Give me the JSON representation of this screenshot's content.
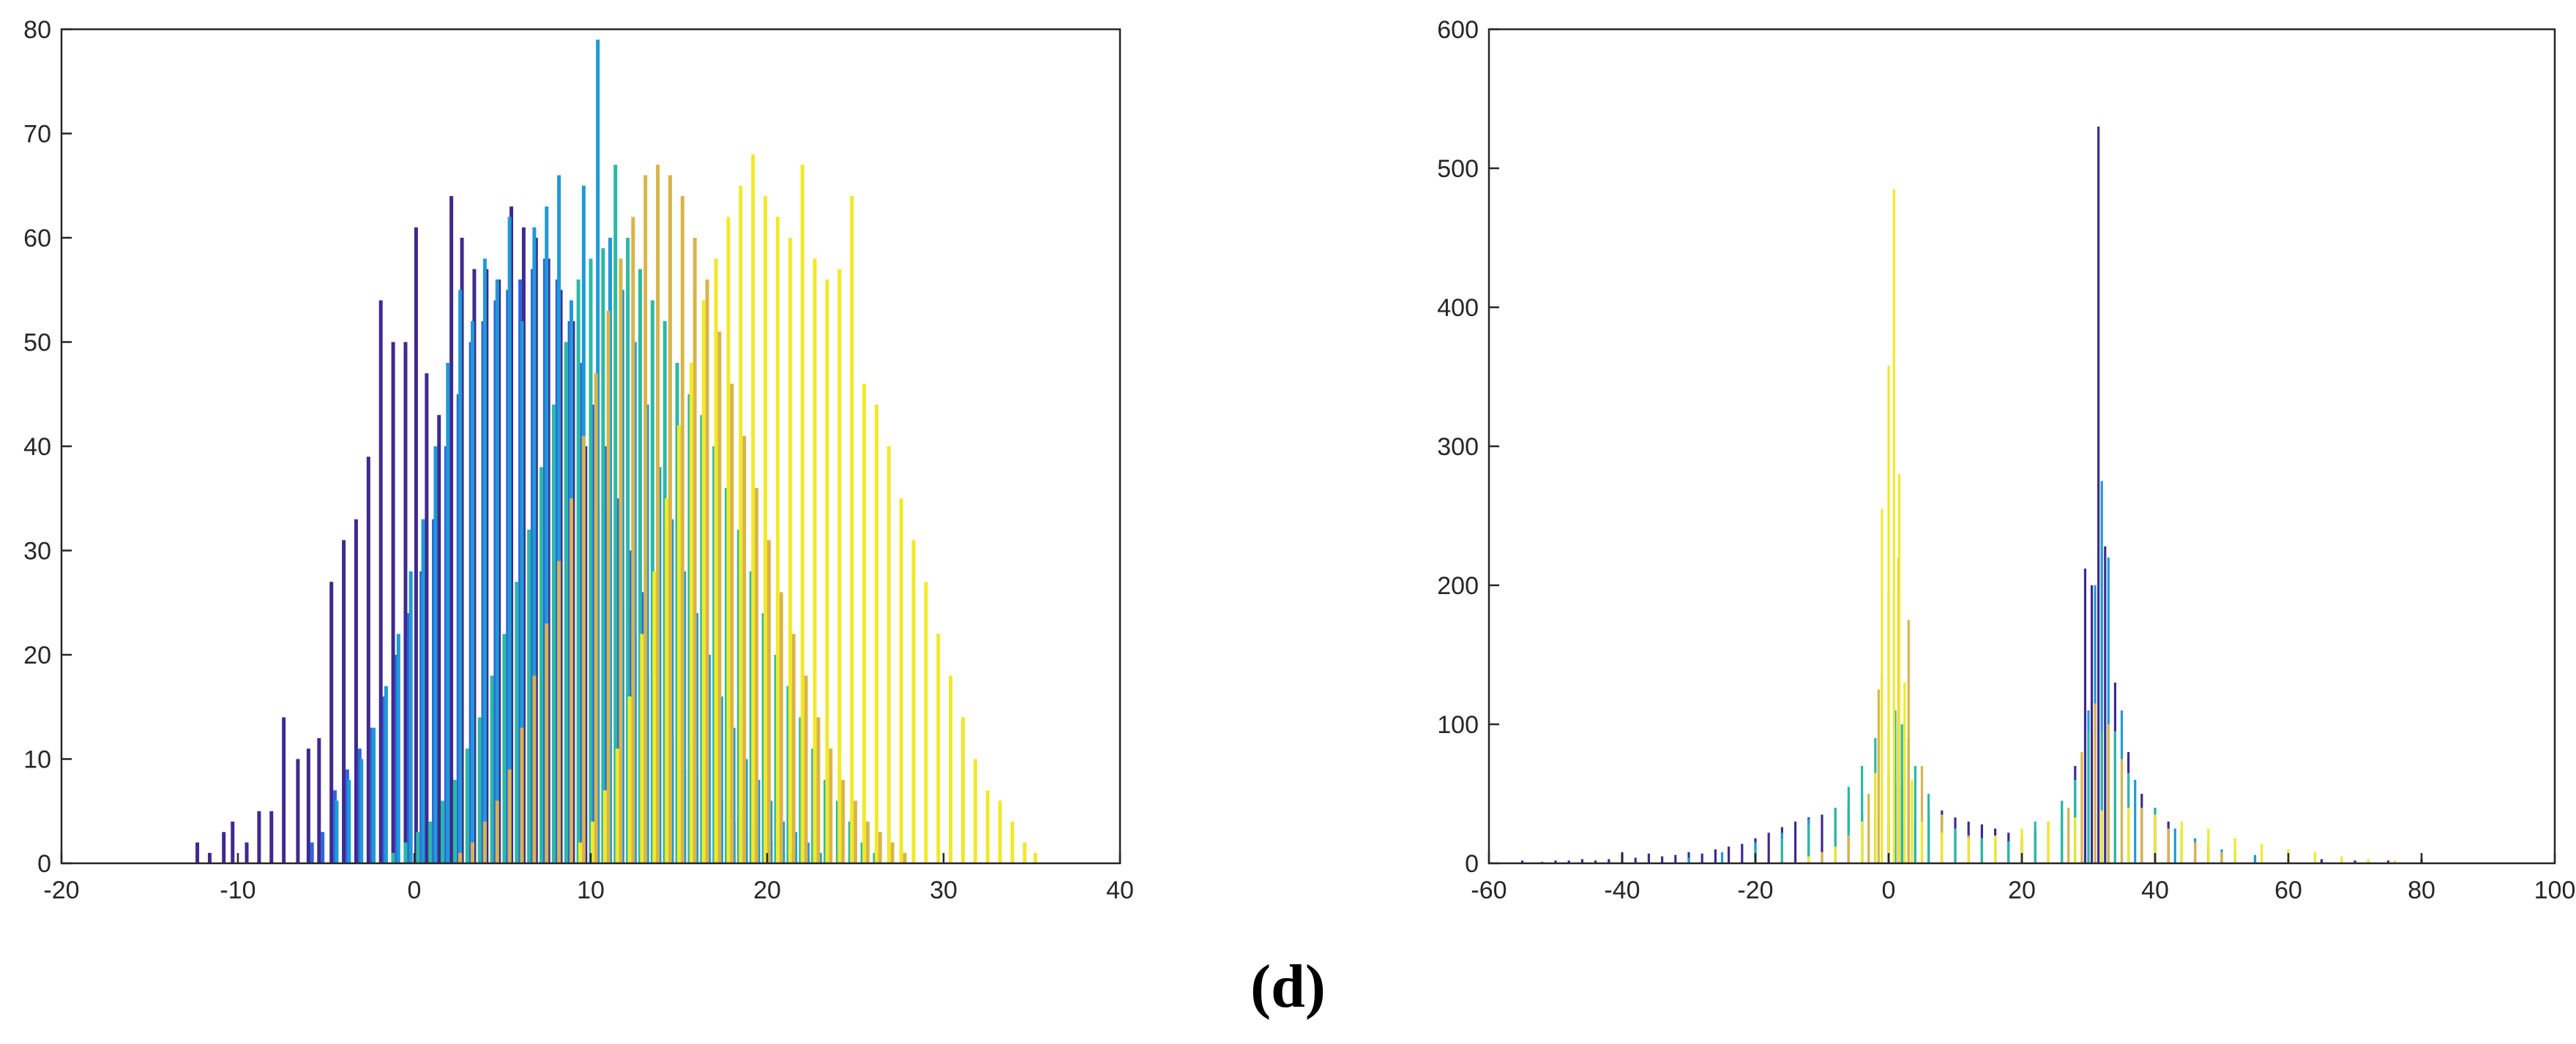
{
  "caption": "(d)",
  "palette": [
    "#3e2a8f",
    "#2f64e0",
    "#1f9ad6",
    "#2bb9a5",
    "#8ecb5e",
    "#d9b44a",
    "#f1e92a",
    "#ffff33"
  ],
  "chart_data": [
    {
      "type": "bar",
      "xlim": [
        -20,
        40
      ],
      "ylim": [
        0,
        80
      ],
      "xticks": [
        -20,
        -10,
        0,
        10,
        20,
        30,
        40
      ],
      "yticks": [
        0,
        10,
        20,
        30,
        40,
        50,
        60,
        70,
        80
      ],
      "grid": false,
      "xtick_labels": [
        "-20",
        "-10",
        "0",
        "10",
        "20",
        "30",
        "40"
      ],
      "ytick_labels": [
        "0",
        "10",
        "20",
        "30",
        "40",
        "50",
        "60",
        "70",
        "80"
      ],
      "series": [
        {
          "color": "#3e2a8f",
          "x": [
            -12.3,
            -11.6,
            -10.8,
            -10.3,
            -9.5,
            -8.8,
            -8.1,
            -7.4,
            -6.6,
            -6.0,
            -5.4,
            -4.7,
            -4.0,
            -3.3,
            -2.6,
            -1.9,
            -1.2,
            -0.5,
            0.1,
            0.7,
            1.4,
            2.1,
            2.7,
            3.4,
            4.1,
            4.8,
            5.5,
            6.2,
            6.9,
            7.6,
            8.3,
            9.0,
            9.7,
            10.4,
            11.1,
            11.8,
            12.5,
            13.2,
            13.9,
            14.6,
            15.3,
            16.0,
            16.7,
            17.4,
            18.1,
            18.8,
            19.5,
            20.2,
            20.9,
            21.6,
            22.3
          ],
          "values": [
            2,
            1,
            3,
            4,
            2,
            5,
            5,
            14,
            10,
            11,
            12,
            27,
            31,
            33,
            39,
            54,
            50,
            50,
            61,
            47,
            43,
            64,
            60,
            57,
            57,
            56,
            63,
            61,
            60,
            58,
            55,
            52,
            40,
            34,
            30,
            25,
            22,
            18,
            14,
            12,
            9,
            9,
            7,
            6,
            4,
            3,
            2,
            2,
            1,
            1,
            1
          ]
        },
        {
          "color": "#2f64e0",
          "x": [
            -5.8,
            -5.2,
            -4.5,
            -3.8,
            -3.1,
            -2.4,
            -1.7,
            -1.0,
            -0.3,
            0.4,
            1.1,
            1.8,
            2.5,
            3.2,
            3.9,
            4.6,
            5.3,
            6.0,
            6.7,
            7.4,
            8.1,
            8.8,
            9.5,
            10.2,
            10.9,
            11.6,
            12.3,
            13.0,
            13.7,
            14.4,
            15.1,
            15.8,
            16.5,
            17.2,
            17.9,
            18.6,
            19.3,
            20.0,
            20.7,
            21.4,
            22.1
          ],
          "values": [
            2,
            3,
            7,
            9,
            11,
            13,
            16,
            20,
            24,
            28,
            33,
            40,
            45,
            50,
            52,
            54,
            55,
            56,
            57,
            58,
            56,
            52,
            48,
            44,
            40,
            35,
            30,
            26,
            22,
            18,
            15,
            12,
            10,
            8,
            6,
            5,
            4,
            3,
            2,
            1,
            1
          ]
        },
        {
          "color": "#1f9ad6",
          "x": [
            -4.4,
            -3.7,
            -3.0,
            -2.3,
            -1.6,
            -0.9,
            -0.2,
            0.5,
            1.2,
            1.9,
            2.6,
            3.3,
            4.0,
            4.7,
            5.4,
            6.1,
            6.8,
            7.5,
            8.2,
            8.9,
            9.6,
            10.4,
            11.1,
            11.8,
            12.5,
            13.2,
            13.9,
            14.6,
            15.3,
            16.0,
            16.7,
            17.4,
            18.1,
            18.8,
            19.5,
            20.2,
            20.9,
            21.6,
            22.3,
            23.0
          ],
          "values": [
            6,
            8,
            10,
            13,
            17,
            22,
            28,
            33,
            40,
            48,
            55,
            52,
            58,
            56,
            62,
            52,
            61,
            63,
            66,
            54,
            65,
            79,
            60,
            55,
            50,
            44,
            38,
            33,
            28,
            24,
            20,
            16,
            13,
            10,
            8,
            6,
            4,
            3,
            2,
            1
          ]
        },
        {
          "color": "#2bb9a5",
          "x": [
            -1.2,
            -0.5,
            0.2,
            0.9,
            1.6,
            2.3,
            3.0,
            3.7,
            4.4,
            5.1,
            5.8,
            6.5,
            7.2,
            7.9,
            8.6,
            9.3,
            10.0,
            10.7,
            11.4,
            12.1,
            12.8,
            13.5,
            14.2,
            14.9,
            15.6,
            16.3,
            17.0,
            17.7,
            18.4,
            19.1,
            19.8,
            20.5,
            21.2,
            21.9,
            22.6,
            23.3,
            24.0,
            24.7,
            25.4,
            26.1
          ],
          "values": [
            1,
            2,
            3,
            4,
            6,
            8,
            11,
            14,
            18,
            22,
            27,
            32,
            38,
            44,
            50,
            56,
            58,
            59,
            67,
            60,
            57,
            54,
            52,
            48,
            45,
            43,
            40,
            36,
            32,
            28,
            24,
            20,
            17,
            14,
            11,
            8,
            6,
            4,
            2,
            1
          ]
        },
        {
          "color": "#d9b44a",
          "x": [
            2.6,
            3.3,
            4.0,
            4.7,
            5.4,
            6.1,
            6.8,
            7.5,
            8.2,
            8.9,
            9.6,
            10.3,
            11.0,
            11.7,
            12.4,
            13.1,
            13.8,
            14.5,
            15.2,
            15.9,
            16.6,
            17.3,
            18.0,
            18.7,
            19.4,
            20.1,
            20.8,
            21.5,
            22.2,
            22.9,
            23.6,
            24.3,
            25.0,
            25.7,
            26.4,
            27.1,
            27.8
          ],
          "values": [
            1,
            2,
            4,
            6,
            9,
            13,
            18,
            23,
            29,
            35,
            41,
            47,
            53,
            58,
            62,
            66,
            67,
            66,
            64,
            60,
            56,
            51,
            46,
            41,
            36,
            31,
            26,
            22,
            18,
            14,
            11,
            8,
            6,
            4,
            3,
            2,
            1
          ]
        },
        {
          "color": "#f1e92a",
          "x": [
            9.4,
            10.1,
            10.8,
            11.5,
            12.2,
            12.9,
            13.6,
            14.3,
            15.0,
            15.7,
            16.4,
            17.1,
            17.8,
            18.5,
            19.2,
            19.9,
            20.6,
            21.3,
            22.0,
            22.7,
            23.4,
            24.1,
            24.8,
            25.5,
            26.2,
            26.9,
            27.6,
            28.3,
            29.0,
            29.7,
            30.4,
            31.1,
            31.8,
            32.5,
            33.2,
            33.9,
            34.6,
            35.2
          ],
          "values": [
            2,
            4,
            7,
            11,
            16,
            22,
            28,
            35,
            42,
            48,
            54,
            58,
            62,
            65,
            68,
            64,
            62,
            60,
            67,
            58,
            56,
            57,
            64,
            46,
            44,
            40,
            35,
            31,
            27,
            22,
            18,
            14,
            10,
            7,
            6,
            4,
            2,
            1
          ]
        }
      ]
    },
    {
      "type": "bar",
      "xlim": [
        -60,
        100
      ],
      "ylim": [
        0,
        600
      ],
      "xticks": [
        -60,
        -40,
        -20,
        0,
        20,
        40,
        60,
        80,
        100
      ],
      "yticks": [
        0,
        100,
        200,
        300,
        400,
        500,
        600
      ],
      "grid": false,
      "xtick_labels": [
        "-60",
        "-40",
        "-20",
        "0",
        "20",
        "40",
        "60",
        "80",
        "100"
      ],
      "ytick_labels": [
        "0",
        "100",
        "200",
        "300",
        "400",
        "500",
        "600"
      ],
      "series": [
        {
          "color": "#3e2a8f",
          "x": [
            -55,
            -52,
            -50,
            -48,
            -46,
            -44,
            -42,
            -40,
            -38,
            -36,
            -34,
            -32,
            -30,
            -28,
            -26,
            -24,
            -22,
            -20,
            -18,
            -16,
            -14,
            -12,
            -10,
            -8,
            -6,
            -4,
            -2,
            0,
            2,
            4,
            6,
            8,
            10,
            12,
            14,
            16,
            18,
            20,
            22,
            24,
            26,
            28,
            29.5,
            30.5,
            31.5,
            32.5,
            34,
            36,
            38,
            40,
            42,
            44,
            46,
            48,
            50,
            55,
            60,
            65,
            70,
            75,
            80
          ],
          "values": [
            2,
            1,
            2,
            2,
            3,
            2,
            3,
            8,
            4,
            7,
            5,
            6,
            8,
            7,
            10,
            12,
            14,
            18,
            22,
            26,
            30,
            33,
            35,
            38,
            40,
            36,
            33,
            30,
            28,
            30,
            35,
            38,
            33,
            30,
            28,
            25,
            22,
            20,
            24,
            30,
            45,
            70,
            212,
            200,
            530,
            228,
            130,
            80,
            50,
            40,
            30,
            22,
            15,
            10,
            7,
            5,
            3,
            3,
            2,
            2,
            3
          ]
        },
        {
          "color": "#1f9ad6",
          "x": [
            -30,
            -25,
            -20,
            -16,
            -12,
            -8,
            -6,
            -4,
            -2,
            0,
            1,
            2,
            4,
            6,
            8,
            10,
            12,
            14,
            16,
            18,
            20,
            22,
            24,
            26,
            28,
            30,
            31,
            32,
            33,
            35,
            37,
            40,
            43,
            46,
            50,
            55,
            60
          ],
          "values": [
            4,
            8,
            15,
            22,
            32,
            40,
            45,
            50,
            60,
            65,
            60,
            55,
            45,
            38,
            30,
            25,
            20,
            18,
            16,
            16,
            18,
            20,
            25,
            35,
            60,
            110,
            200,
            275,
            220,
            110,
            60,
            35,
            25,
            18,
            10,
            6,
            3
          ]
        },
        {
          "color": "#2bb9a5",
          "x": [
            -20,
            -16,
            -12,
            -8,
            -6,
            -4,
            -2,
            -1,
            0,
            1,
            2,
            3,
            4,
            6,
            8,
            10,
            14,
            18,
            22,
            26,
            28,
            30,
            32,
            34,
            36,
            40,
            44,
            48,
            52
          ],
          "values": [
            10,
            18,
            28,
            40,
            55,
            70,
            90,
            135,
            95,
            110,
            100,
            90,
            70,
            50,
            35,
            25,
            18,
            15,
            30,
            45,
            60,
            95,
            95,
            95,
            65,
            40,
            25,
            15,
            8
          ]
        },
        {
          "color": "#d9b44a",
          "x": [
            -10,
            -6,
            -3,
            -1.5,
            0,
            1.5,
            3,
            5,
            8,
            12,
            16,
            20,
            24,
            27,
            29,
            31,
            33,
            35,
            38,
            42,
            46,
            50
          ],
          "values": [
            8,
            20,
            50,
            125,
            195,
            220,
            175,
            70,
            35,
            20,
            15,
            18,
            25,
            40,
            80,
            115,
            100,
            75,
            40,
            25,
            15,
            8
          ]
        },
        {
          "color": "#f1e92a",
          "x": [
            -12,
            -8,
            -4,
            -2,
            -1,
            0,
            0.8,
            1.6,
            2.4,
            3.5,
            5,
            8,
            12,
            16,
            20,
            24,
            28,
            32,
            36,
            40,
            44,
            48,
            52,
            56,
            60,
            64,
            68,
            72,
            76
          ],
          "values": [
            5,
            12,
            30,
            65,
            255,
            358,
            485,
            280,
            130,
            60,
            30,
            22,
            18,
            20,
            25,
            30,
            33,
            38,
            40,
            35,
            30,
            25,
            18,
            14,
            10,
            8,
            5,
            3,
            2
          ]
        }
      ]
    }
  ]
}
